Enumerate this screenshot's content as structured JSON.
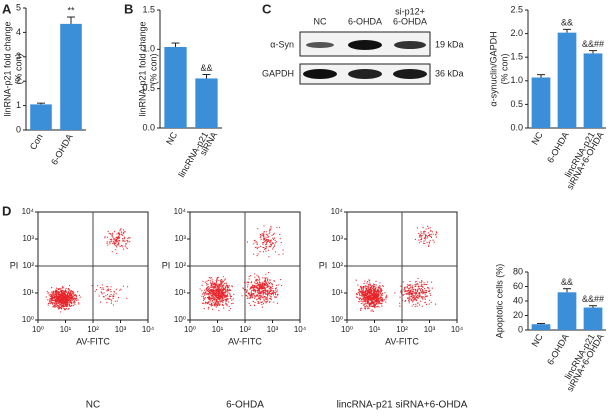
{
  "panels": [
    "A",
    "B",
    "C",
    "D"
  ],
  "blot": {
    "lanes": [
      "NC",
      "6-OHDA",
      [
        "si-p12+",
        "6-OHDA"
      ]
    ],
    "rows": [
      "α-Syn",
      "GAPDH"
    ],
    "sizes": [
      "19 kDa",
      "36 kDa"
    ]
  },
  "chart_data": [
    {
      "type": "bar",
      "ylabel": [
        "linRNA-p21 fold change",
        "(% con)"
      ],
      "categories": [
        "Con",
        "6-OHDA"
      ],
      "values": [
        1.05,
        4.35
      ],
      "errors": [
        0.05,
        0.28
      ],
      "annotations": [
        null,
        "**"
      ],
      "ylim": [
        0,
        5
      ],
      "yticks": [
        0,
        1,
        2,
        3,
        4,
        5
      ],
      "color": "#3b8fd9"
    },
    {
      "type": "bar",
      "ylabel": [
        "linRNA-p21 fold change",
        "(% con)"
      ],
      "categories": [
        "NC",
        [
          "lincRNA-p21",
          "siRNA"
        ]
      ],
      "values": [
        1.03,
        0.63
      ],
      "errors": [
        0.05,
        0.05
      ],
      "annotations": [
        null,
        "&&"
      ],
      "ylim": [
        0,
        1.5
      ],
      "yticks": [
        {
          "value": 0,
          "label": "0.0"
        },
        0.5,
        {
          "value": 1,
          "label": "1.0"
        },
        1.5
      ],
      "color": "#3b8fd9"
    },
    {
      "type": "bar",
      "ylabel": [
        "α-synuclin/GAPDH",
        "(% con)"
      ],
      "categories": [
        "NC",
        "6-OHDA",
        [
          "lincRNA-p21",
          "siRNA+6-OHDA"
        ]
      ],
      "values": [
        1.07,
        2.02,
        1.58
      ],
      "errors": [
        0.06,
        0.07,
        0.06
      ],
      "annotations": [
        null,
        "&&",
        "&&##"
      ],
      "ylim": [
        0,
        2.5
      ],
      "yticks": [
        {
          "value": 0,
          "label": "0.0"
        },
        0.5,
        {
          "value": 1,
          "label": "1.0"
        },
        1.5,
        {
          "value": 2,
          "label": "2.0"
        },
        2.5
      ],
      "color": "#3b8fd9"
    },
    {
      "type": "bar",
      "ylabel": [
        "Apoptotic cells (%)"
      ],
      "categories": [
        "NC",
        "6-OHDA",
        [
          "lincRNA-p21",
          "siRNA+6-OHDA"
        ]
      ],
      "values": [
        8,
        52,
        31
      ],
      "errors": [
        1,
        5,
        2.5
      ],
      "annotations": [
        null,
        "&&",
        "&&##"
      ],
      "ylim": [
        0,
        80
      ],
      "yticks": [
        0,
        20,
        40,
        60,
        80
      ],
      "color": "#3b8fd9"
    },
    {
      "type": "flow",
      "xlabel": "AV-FITC",
      "ylabel": "PI",
      "caption": "NC",
      "log": true,
      "xlim": [
        1,
        10000
      ],
      "ylim": [
        1,
        10000
      ],
      "xticks": [
        {
          "value": 1,
          "label": "10⁰"
        },
        {
          "value": 10,
          "label": "10¹"
        },
        {
          "value": 100,
          "label": "10²"
        },
        {
          "value": 1000,
          "label": "10³"
        },
        {
          "value": 10000,
          "label": "10⁴"
        }
      ],
      "yticks": [
        {
          "value": 1,
          "label": "10⁰"
        },
        {
          "value": 10,
          "label": "10¹"
        },
        {
          "value": 100,
          "label": "10²"
        },
        {
          "value": 1000,
          "label": "10³"
        },
        {
          "value": 10000,
          "label": "10⁴"
        }
      ],
      "color": "#e8242a"
    },
    {
      "type": "flow",
      "xlabel": "AV-FITC",
      "ylabel": "PI",
      "caption": "6-OHDA",
      "log": true,
      "xlim": [
        1,
        10000
      ],
      "ylim": [
        1,
        10000
      ],
      "xticks": [
        {
          "value": 1,
          "label": "10⁰"
        },
        {
          "value": 10,
          "label": "10¹"
        },
        {
          "value": 100,
          "label": "10²"
        },
        {
          "value": 1000,
          "label": "10³"
        },
        {
          "value": 10000,
          "label": "10⁴"
        }
      ],
      "yticks": [
        {
          "value": 1,
          "label": "10⁰"
        },
        {
          "value": 10,
          "label": "10¹"
        },
        {
          "value": 100,
          "label": "10²"
        },
        {
          "value": 1000,
          "label": "10³"
        },
        {
          "value": 10000,
          "label": "10⁴"
        }
      ],
      "color": "#e8242a"
    },
    {
      "type": "flow",
      "xlabel": "AV-FITC",
      "ylabel": "PI",
      "caption": "lincRNA-p21 siRNA+6-OHDA",
      "log": true,
      "xlim": [
        1,
        10000
      ],
      "ylim": [
        1,
        10000
      ],
      "xticks": [
        {
          "value": 1,
          "label": "10⁰"
        },
        {
          "value": 10,
          "label": "10¹"
        },
        {
          "value": 100,
          "label": "10²"
        },
        {
          "value": 1000,
          "label": "10³"
        },
        {
          "value": 10000,
          "label": "10⁴"
        }
      ],
      "yticks": [
        {
          "value": 1,
          "label": "10⁰"
        },
        {
          "value": 10,
          "label": "10¹"
        },
        {
          "value": 100,
          "label": "10²"
        },
        {
          "value": 1000,
          "label": "10³"
        },
        {
          "value": 10000,
          "label": "10⁴"
        }
      ],
      "color": "#e8242a"
    }
  ]
}
